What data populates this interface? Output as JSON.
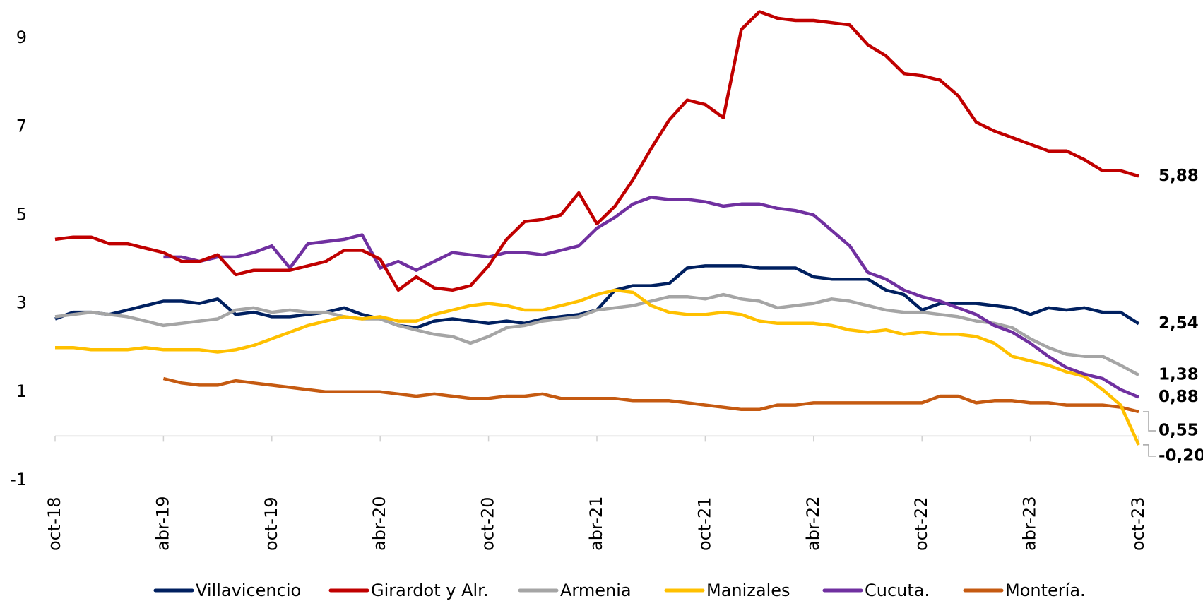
{
  "chart_data": {
    "type": "line",
    "categories": [
      "oct-18",
      null,
      null,
      null,
      null,
      null,
      "abr-19",
      null,
      null,
      null,
      null,
      null,
      "oct-19",
      null,
      null,
      null,
      null,
      null,
      "abr-20",
      null,
      null,
      null,
      null,
      null,
      "oct-20",
      null,
      null,
      null,
      null,
      null,
      "abr-21",
      null,
      null,
      null,
      null,
      null,
      "oct-21",
      null,
      null,
      null,
      null,
      null,
      "abr-22",
      null,
      null,
      null,
      null,
      null,
      "oct-22",
      null,
      null,
      null,
      null,
      null,
      "abr-23",
      null,
      null,
      null,
      null,
      null,
      "oct-23"
    ],
    "ylim": [
      -1.4,
      9.8
    ],
    "yticks": [
      -1,
      1,
      3,
      5,
      7,
      9
    ],
    "legend": "bottom",
    "series": [
      {
        "name": "Villavicencio",
        "color": "#002060",
        "values": [
          2.65,
          2.8,
          2.8,
          2.75,
          2.85,
          2.95,
          3.05,
          3.05,
          3.0,
          3.1,
          2.75,
          2.8,
          2.7,
          2.7,
          2.75,
          2.8,
          2.9,
          2.75,
          2.65,
          2.5,
          2.45,
          2.6,
          2.65,
          2.6,
          2.55,
          2.6,
          2.55,
          2.65,
          2.7,
          2.75,
          2.85,
          3.3,
          3.4,
          3.4,
          3.45,
          3.8,
          3.85,
          3.85,
          3.85,
          3.8,
          3.8,
          3.8,
          3.6,
          3.55,
          3.55,
          3.55,
          3.3,
          3.2,
          2.85,
          3.0,
          3.0,
          3.0,
          2.95,
          2.9,
          2.75,
          2.9,
          2.85,
          2.9,
          2.8,
          2.8,
          2.54
        ],
        "value_labels": [
          null,
          null,
          null,
          null,
          null,
          null,
          null,
          null,
          null,
          null,
          null,
          null,
          null,
          null,
          null,
          null,
          null,
          null,
          null,
          null,
          null,
          null,
          null,
          null,
          null,
          null,
          null,
          null,
          null,
          null,
          null,
          null,
          null,
          null,
          null,
          null,
          null,
          null,
          null,
          null,
          null,
          null,
          null,
          null,
          null,
          null,
          null,
          null,
          null,
          null,
          null,
          null,
          null,
          null,
          null,
          null,
          null,
          null,
          null,
          null,
          "2,54"
        ]
      },
      {
        "name": "Girardot y Alr.",
        "color": "#c00000",
        "values": [
          4.45,
          4.5,
          4.5,
          4.35,
          4.35,
          4.25,
          4.15,
          3.95,
          3.95,
          4.1,
          3.65,
          3.75,
          3.75,
          3.75,
          3.85,
          3.95,
          4.2,
          4.2,
          4.0,
          3.3,
          3.6,
          3.35,
          3.3,
          3.4,
          3.85,
          4.45,
          4.85,
          4.9,
          5.0,
          5.5,
          4.8,
          5.2,
          5.8,
          6.5,
          7.15,
          7.6,
          7.5,
          7.2,
          9.2,
          9.6,
          9.45,
          9.4,
          9.4,
          9.35,
          9.3,
          8.85,
          8.6,
          8.2,
          8.15,
          8.05,
          7.7,
          7.1,
          6.9,
          6.75,
          6.6,
          6.45,
          6.45,
          6.25,
          6.0,
          6.0,
          5.88
        ],
        "value_labels": [
          null,
          null,
          null,
          null,
          null,
          null,
          null,
          null,
          null,
          null,
          null,
          null,
          null,
          null,
          null,
          null,
          null,
          null,
          null,
          null,
          null,
          null,
          null,
          null,
          null,
          null,
          null,
          null,
          null,
          null,
          null,
          null,
          null,
          null,
          null,
          null,
          null,
          null,
          null,
          null,
          null,
          null,
          null,
          null,
          null,
          null,
          null,
          null,
          null,
          null,
          null,
          null,
          null,
          null,
          null,
          null,
          null,
          null,
          null,
          null,
          "5,88"
        ]
      },
      {
        "name": "Armenia",
        "color": "#a5a5a5",
        "values": [
          2.7,
          2.75,
          2.8,
          2.75,
          2.7,
          2.6,
          2.5,
          2.55,
          2.6,
          2.65,
          2.85,
          2.9,
          2.8,
          2.85,
          2.8,
          2.8,
          2.7,
          2.65,
          2.65,
          2.5,
          2.4,
          2.3,
          2.25,
          2.1,
          2.25,
          2.45,
          2.5,
          2.6,
          2.65,
          2.7,
          2.85,
          2.9,
          2.95,
          3.05,
          3.15,
          3.15,
          3.1,
          3.2,
          3.1,
          3.05,
          2.9,
          2.95,
          3.0,
          3.1,
          3.05,
          2.95,
          2.85,
          2.8,
          2.8,
          2.75,
          2.7,
          2.6,
          2.55,
          2.45,
          2.2,
          2.0,
          1.85,
          1.8,
          1.8,
          1.6,
          1.38
        ],
        "value_labels": [
          null,
          null,
          null,
          null,
          null,
          null,
          null,
          null,
          null,
          null,
          null,
          null,
          null,
          null,
          null,
          null,
          null,
          null,
          null,
          null,
          null,
          null,
          null,
          null,
          null,
          null,
          null,
          null,
          null,
          null,
          null,
          null,
          null,
          null,
          null,
          null,
          null,
          null,
          null,
          null,
          null,
          null,
          null,
          null,
          null,
          null,
          null,
          null,
          null,
          null,
          null,
          null,
          null,
          null,
          null,
          null,
          null,
          null,
          null,
          null,
          "1,38"
        ]
      },
      {
        "name": "Manizales",
        "color": "#ffc000",
        "values": [
          2.0,
          2.0,
          1.95,
          1.95,
          1.95,
          2.0,
          1.95,
          1.95,
          1.95,
          1.9,
          1.95,
          2.05,
          2.2,
          2.35,
          2.5,
          2.6,
          2.7,
          2.65,
          2.7,
          2.6,
          2.6,
          2.75,
          2.85,
          2.95,
          3.0,
          2.95,
          2.85,
          2.85,
          2.95,
          3.05,
          3.2,
          3.3,
          3.25,
          2.95,
          2.8,
          2.75,
          2.75,
          2.8,
          2.75,
          2.6,
          2.55,
          2.55,
          2.55,
          2.5,
          2.4,
          2.35,
          2.4,
          2.3,
          2.35,
          2.3,
          2.3,
          2.25,
          2.1,
          1.8,
          1.7,
          1.6,
          1.45,
          1.35,
          1.05,
          0.7,
          -0.2
        ],
        "value_labels": [
          null,
          null,
          null,
          null,
          null,
          null,
          null,
          null,
          null,
          null,
          null,
          null,
          null,
          null,
          null,
          null,
          null,
          null,
          null,
          null,
          null,
          null,
          null,
          null,
          null,
          null,
          null,
          null,
          null,
          null,
          null,
          null,
          null,
          null,
          null,
          null,
          null,
          null,
          null,
          null,
          null,
          null,
          null,
          null,
          null,
          null,
          null,
          null,
          null,
          null,
          null,
          null,
          null,
          null,
          null,
          null,
          null,
          null,
          null,
          null,
          "-0,20"
        ]
      },
      {
        "name": "Cucuta.",
        "color": "#7030a0",
        "values": [
          null,
          null,
          null,
          null,
          null,
          null,
          4.05,
          4.05,
          3.95,
          4.05,
          4.05,
          4.15,
          4.3,
          3.8,
          4.35,
          4.4,
          4.45,
          4.55,
          3.8,
          3.95,
          3.75,
          3.95,
          4.15,
          4.1,
          4.05,
          4.15,
          4.15,
          4.1,
          4.2,
          4.3,
          4.7,
          4.95,
          5.25,
          5.4,
          5.35,
          5.35,
          5.3,
          5.2,
          5.25,
          5.25,
          5.15,
          5.1,
          5.0,
          4.65,
          4.3,
          3.7,
          3.55,
          3.3,
          3.15,
          3.05,
          2.9,
          2.75,
          2.5,
          2.35,
          2.1,
          1.8,
          1.55,
          1.4,
          1.3,
          1.05,
          0.88
        ],
        "value_labels": [
          null,
          null,
          null,
          null,
          null,
          null,
          null,
          null,
          null,
          null,
          null,
          null,
          null,
          null,
          null,
          null,
          null,
          null,
          null,
          null,
          null,
          null,
          null,
          null,
          null,
          null,
          null,
          null,
          null,
          null,
          null,
          null,
          null,
          null,
          null,
          null,
          null,
          null,
          null,
          null,
          null,
          null,
          null,
          null,
          null,
          null,
          null,
          null,
          null,
          null,
          null,
          null,
          null,
          null,
          null,
          null,
          null,
          null,
          null,
          null,
          "0,88"
        ]
      },
      {
        "name": "Montería.",
        "color": "#c55a11",
        "values": [
          null,
          null,
          null,
          null,
          null,
          null,
          1.3,
          1.2,
          1.15,
          1.15,
          1.25,
          1.2,
          1.15,
          1.1,
          1.05,
          1.0,
          1.0,
          1.0,
          1.0,
          0.95,
          0.9,
          0.95,
          0.9,
          0.85,
          0.85,
          0.9,
          0.9,
          0.95,
          0.85,
          0.85,
          0.85,
          0.85,
          0.8,
          0.8,
          0.8,
          0.75,
          0.7,
          0.65,
          0.6,
          0.6,
          0.7,
          0.7,
          0.75,
          0.75,
          0.75,
          0.75,
          0.75,
          0.75,
          0.75,
          0.9,
          0.9,
          0.75,
          0.8,
          0.8,
          0.75,
          0.75,
          0.7,
          0.7,
          0.7,
          0.65,
          0.55
        ],
        "value_labels": [
          null,
          null,
          null,
          null,
          null,
          null,
          null,
          null,
          null,
          null,
          null,
          null,
          null,
          null,
          null,
          null,
          null,
          null,
          null,
          null,
          null,
          null,
          null,
          null,
          null,
          null,
          null,
          null,
          null,
          null,
          null,
          null,
          null,
          null,
          null,
          null,
          null,
          null,
          null,
          null,
          null,
          null,
          null,
          null,
          null,
          null,
          null,
          null,
          null,
          null,
          null,
          null,
          null,
          null,
          null,
          null,
          null,
          null,
          null,
          null,
          "0,55"
        ]
      }
    ]
  }
}
